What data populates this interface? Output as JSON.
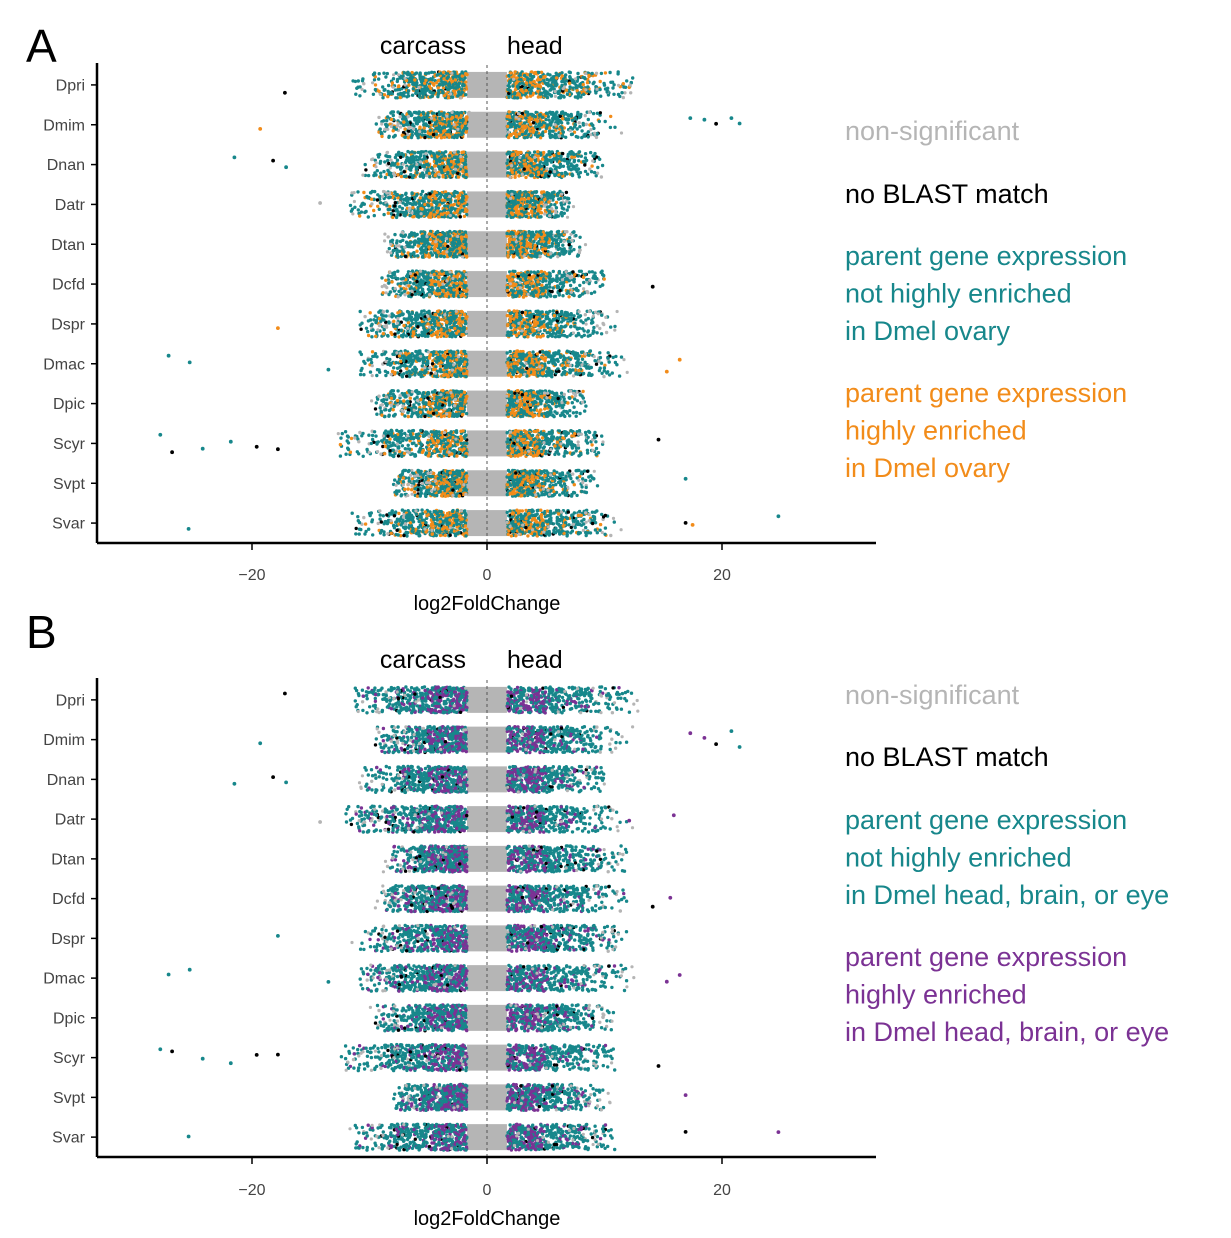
{
  "colors": {
    "nonsig": "#b5b5b5",
    "noblast": "#000000",
    "teal": "#17878b",
    "orange": "#f28c1a",
    "purple": "#7b3294"
  },
  "chart_data": [
    {
      "type": "scatter",
      "panel_letter": "A",
      "left_label": "carcass",
      "right_label": "head",
      "xlabel": "log2FoldChange",
      "xlim": [
        -33,
        33
      ],
      "x_ticks": [
        -20,
        0,
        20
      ],
      "x_tick_labels": [
        "−20",
        "0",
        "20"
      ],
      "categories": [
        "Dpri",
        "Dmim",
        "Dnan",
        "Datr",
        "Dtan",
        "Dcfd",
        "Dspr",
        "Dmac",
        "Dpic",
        "Scyr",
        "Svpt",
        "Svar"
      ],
      "highlight_color": "orange",
      "legend": [
        {
          "label": "non-significant",
          "color": "nonsig"
        },
        {
          "label": "no BLAST match",
          "color": "noblast"
        },
        {
          "label": "parent gene expression\nnot highly enriched\nin Dmel ovary",
          "color": "teal"
        },
        {
          "label": "parent gene expression\nhighly enriched\nin Dmel ovary",
          "color": "orange"
        }
      ],
      "ranges": [
        {
          "lmin": -11.5,
          "rmax": 12.5
        },
        {
          "lmin": -9.5,
          "rmax": 11
        },
        {
          "lmin": -10.5,
          "rmax": 10
        },
        {
          "lmin": -12,
          "rmax": 7
        },
        {
          "lmin": -8.5,
          "rmax": 8
        },
        {
          "lmin": -9,
          "rmax": 10
        },
        {
          "lmin": -11,
          "rmax": 11
        },
        {
          "lmin": -11,
          "rmax": 11.5
        },
        {
          "lmin": -9.5,
          "rmax": 8.5
        },
        {
          "lmin": -12.5,
          "rmax": 10
        },
        {
          "lmin": -8,
          "rmax": 9.5
        },
        {
          "lmin": -11.5,
          "rmax": 11
        }
      ],
      "outliers": [
        {
          "cat": "Dpri",
          "x": -17.2,
          "c": "noblast"
        },
        {
          "cat": "Dmim",
          "x": 17.3,
          "c": "teal"
        },
        {
          "cat": "Dmim",
          "x": 18.5,
          "c": "teal"
        },
        {
          "cat": "Dmim",
          "x": 19.5,
          "c": "noblast"
        },
        {
          "cat": "Dmim",
          "x": 20.8,
          "c": "teal"
        },
        {
          "cat": "Dmim",
          "x": 21.5,
          "c": "teal"
        },
        {
          "cat": "Dmim",
          "x": -19.3,
          "c": "orange"
        },
        {
          "cat": "Dnan",
          "x": -21.5,
          "c": "teal"
        },
        {
          "cat": "Dnan",
          "x": -18.2,
          "c": "noblast"
        },
        {
          "cat": "Dnan",
          "x": -17.1,
          "c": "teal"
        },
        {
          "cat": "Datr",
          "x": -14.2,
          "c": "nonsig"
        },
        {
          "cat": "Dcfd",
          "x": 14.1,
          "c": "noblast"
        },
        {
          "cat": "Dspr",
          "x": -17.8,
          "c": "orange"
        },
        {
          "cat": "Dmac",
          "x": -27.1,
          "c": "teal"
        },
        {
          "cat": "Dmac",
          "x": -25.3,
          "c": "teal"
        },
        {
          "cat": "Dmac",
          "x": -13.5,
          "c": "teal"
        },
        {
          "cat": "Dmac",
          "x": 15.3,
          "c": "orange"
        },
        {
          "cat": "Dmac",
          "x": 16.4,
          "c": "orange"
        },
        {
          "cat": "Scyr",
          "x": -27.8,
          "c": "teal"
        },
        {
          "cat": "Scyr",
          "x": -26.8,
          "c": "noblast"
        },
        {
          "cat": "Scyr",
          "x": -24.2,
          "c": "teal"
        },
        {
          "cat": "Scyr",
          "x": -21.8,
          "c": "teal"
        },
        {
          "cat": "Scyr",
          "x": -19.6,
          "c": "noblast"
        },
        {
          "cat": "Scyr",
          "x": -17.8,
          "c": "noblast"
        },
        {
          "cat": "Scyr",
          "x": 14.6,
          "c": "noblast"
        },
        {
          "cat": "Svpt",
          "x": 16.9,
          "c": "teal"
        },
        {
          "cat": "Svar",
          "x": -25.4,
          "c": "teal"
        },
        {
          "cat": "Svar",
          "x": 16.9,
          "c": "noblast"
        },
        {
          "cat": "Svar",
          "x": 17.5,
          "c": "orange"
        },
        {
          "cat": "Svar",
          "x": 24.8,
          "c": "teal"
        }
      ]
    },
    {
      "type": "scatter",
      "panel_letter": "B",
      "left_label": "carcass",
      "right_label": "head",
      "xlabel": "log2FoldChange",
      "xlim": [
        -33,
        33
      ],
      "x_ticks": [
        -20,
        0,
        20
      ],
      "x_tick_labels": [
        "−20",
        "0",
        "20"
      ],
      "categories": [
        "Dpri",
        "Dmim",
        "Dnan",
        "Datr",
        "Dtan",
        "Dcfd",
        "Dspr",
        "Dmac",
        "Dpic",
        "Scyr",
        "Svpt",
        "Svar"
      ],
      "highlight_color": "purple",
      "legend": [
        {
          "label": "non-significant",
          "color": "nonsig"
        },
        {
          "label": "no BLAST match",
          "color": "noblast"
        },
        {
          "label": "parent gene expression\nnot highly enriched\nin Dmel head, brain, or eye",
          "color": "teal"
        },
        {
          "label": "parent gene expression\nhighly enriched\nin Dmel head, brain, or eye",
          "color": "purple"
        }
      ],
      "ranges": [
        {
          "lmin": -11.5,
          "rmax": 12.5
        },
        {
          "lmin": -9.5,
          "rmax": 12
        },
        {
          "lmin": -10.5,
          "rmax": 10
        },
        {
          "lmin": -12,
          "rmax": 12
        },
        {
          "lmin": -8.5,
          "rmax": 12
        },
        {
          "lmin": -9,
          "rmax": 12
        },
        {
          "lmin": -11,
          "rmax": 12
        },
        {
          "lmin": -11,
          "rmax": 12
        },
        {
          "lmin": -9.5,
          "rmax": 11
        },
        {
          "lmin": -12.5,
          "rmax": 11
        },
        {
          "lmin": -8,
          "rmax": 10
        },
        {
          "lmin": -11.5,
          "rmax": 11
        }
      ],
      "outliers": [
        {
          "cat": "Dpri",
          "x": -17.2,
          "c": "noblast"
        },
        {
          "cat": "Dmim",
          "x": -19.3,
          "c": "teal"
        },
        {
          "cat": "Dmim",
          "x": 17.3,
          "c": "purple"
        },
        {
          "cat": "Dmim",
          "x": 18.5,
          "c": "purple"
        },
        {
          "cat": "Dmim",
          "x": 19.5,
          "c": "noblast"
        },
        {
          "cat": "Dmim",
          "x": 20.8,
          "c": "teal"
        },
        {
          "cat": "Dmim",
          "x": 21.5,
          "c": "teal"
        },
        {
          "cat": "Dnan",
          "x": -21.5,
          "c": "teal"
        },
        {
          "cat": "Dnan",
          "x": -18.2,
          "c": "noblast"
        },
        {
          "cat": "Dnan",
          "x": -17.1,
          "c": "teal"
        },
        {
          "cat": "Datr",
          "x": -14.2,
          "c": "nonsig"
        },
        {
          "cat": "Datr",
          "x": 12.1,
          "c": "purple"
        },
        {
          "cat": "Datr",
          "x": 15.9,
          "c": "purple"
        },
        {
          "cat": "Dcfd",
          "x": 14.1,
          "c": "noblast"
        },
        {
          "cat": "Dcfd",
          "x": 15.6,
          "c": "purple"
        },
        {
          "cat": "Dspr",
          "x": -17.8,
          "c": "teal"
        },
        {
          "cat": "Dmac",
          "x": -27.1,
          "c": "teal"
        },
        {
          "cat": "Dmac",
          "x": -25.3,
          "c": "teal"
        },
        {
          "cat": "Dmac",
          "x": -13.5,
          "c": "teal"
        },
        {
          "cat": "Dmac",
          "x": 15.3,
          "c": "purple"
        },
        {
          "cat": "Dmac",
          "x": 16.4,
          "c": "purple"
        },
        {
          "cat": "Scyr",
          "x": -27.8,
          "c": "teal"
        },
        {
          "cat": "Scyr",
          "x": -26.8,
          "c": "noblast"
        },
        {
          "cat": "Scyr",
          "x": -24.2,
          "c": "teal"
        },
        {
          "cat": "Scyr",
          "x": -21.8,
          "c": "teal"
        },
        {
          "cat": "Scyr",
          "x": -19.6,
          "c": "noblast"
        },
        {
          "cat": "Scyr",
          "x": -17.8,
          "c": "noblast"
        },
        {
          "cat": "Scyr",
          "x": 14.6,
          "c": "noblast"
        },
        {
          "cat": "Svpt",
          "x": 16.9,
          "c": "purple"
        },
        {
          "cat": "Svar",
          "x": -25.4,
          "c": "teal"
        },
        {
          "cat": "Svar",
          "x": 16.9,
          "c": "noblast"
        },
        {
          "cat": "Svar",
          "x": 24.8,
          "c": "purple"
        }
      ]
    }
  ]
}
